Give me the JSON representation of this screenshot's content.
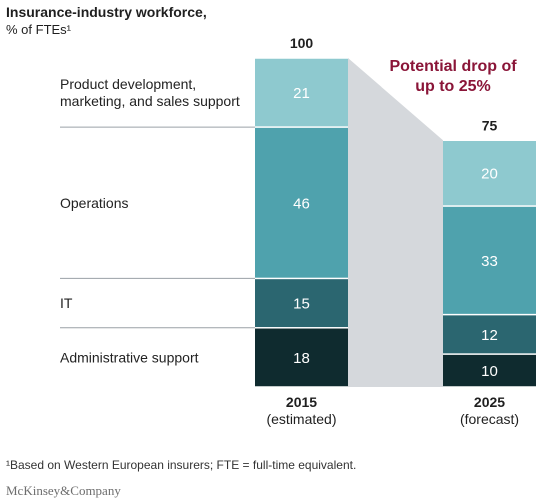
{
  "header": {
    "title": "Insurance-industry workforce,",
    "subtitle": "% of FTEs¹"
  },
  "chart_data": {
    "type": "bar",
    "stacked": true,
    "categories": [
      "2015 (estimated)",
      "2025 (forecast)"
    ],
    "x_labels": [
      {
        "year": "2015",
        "note": "(estimated)"
      },
      {
        "year": "2025",
        "note": "(forecast)"
      }
    ],
    "totals": [
      "100",
      "75"
    ],
    "series": [
      {
        "name": "Administrative support",
        "values": [
          18,
          10
        ],
        "color": "#0f2b2f"
      },
      {
        "name": "IT",
        "values": [
          15,
          12
        ],
        "color": "#2b6670"
      },
      {
        "name": "Operations",
        "values": [
          46,
          33
        ],
        "color": "#4fa2ad"
      },
      {
        "name": "Product development, marketing, and sales support",
        "values": [
          21,
          20
        ],
        "color": "#8ec9cf"
      }
    ],
    "category_labels": [
      [
        "Product development,",
        "marketing, and sales support"
      ],
      [
        "Operations"
      ],
      [
        "IT"
      ],
      [
        "Administrative support"
      ]
    ],
    "annotation": [
      "Potential drop of",
      "up to 25%"
    ],
    "connector_color": "#d5d8dc",
    "annotation_color": "#8a1538"
  },
  "footnote": "¹Based on Western European insurers; FTE = full-time equivalent.",
  "brand": "McKinsey&Company"
}
